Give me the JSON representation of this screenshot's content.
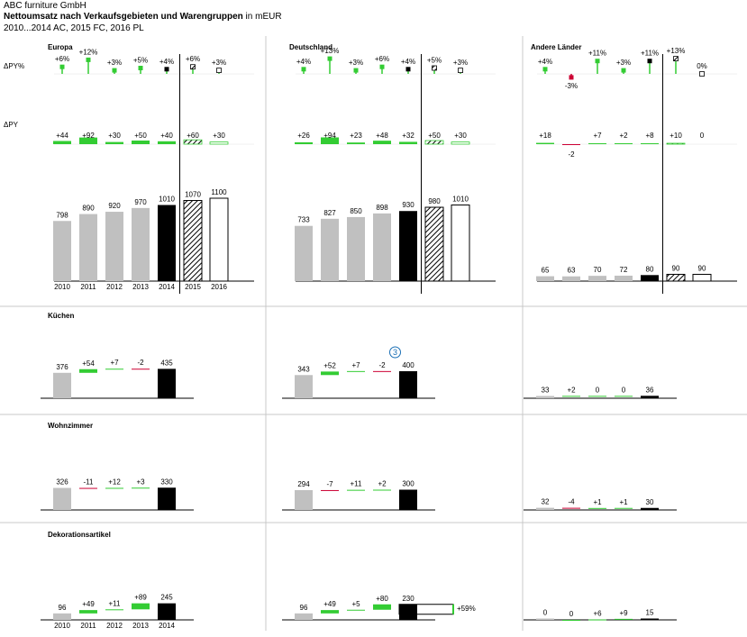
{
  "header": {
    "company": "ABC furniture GmbH",
    "title_bold": "Nettoumsatz nach Verkaufsgebieten und Warengruppen",
    "title_unit": " in mEUR",
    "subtitle": "2010...2014 AC, 2015 FC, 2016 PL"
  },
  "row_labels": {
    "dpy_pct": "ΔPY%",
    "dpy": "ΔPY"
  },
  "colors": {
    "ac": "#000000",
    "hist": "#c0c0c0",
    "positive": "#33cc33",
    "negative": "#cc0033",
    "axis": "#000000",
    "divider": "#c8c8c8",
    "note": "#1a6fb5"
  },
  "chart_data": [
    {
      "type": "bar",
      "name": "Europa",
      "categories": [
        "2010",
        "2011",
        "2012",
        "2013",
        "2014",
        "2015",
        "2016"
      ],
      "scenario": [
        "AC",
        "AC",
        "AC",
        "AC",
        "AC",
        "FC",
        "PL"
      ],
      "values": [
        798,
        890,
        920,
        970,
        1010,
        1070,
        1100
      ],
      "dpy": [
        "",
        "+92",
        "+30",
        "+50",
        "+40",
        "+60",
        "+30"
      ],
      "dpy_values": [
        44,
        92,
        30,
        50,
        40,
        60,
        30
      ],
      "dpy_first": "+44",
      "dpy_pct": [
        "+6%",
        "+12%",
        "+3%",
        "+5%",
        "+4%",
        "+6%",
        "+3%"
      ],
      "dpy_pct_values": [
        6,
        12,
        3,
        5,
        4,
        6,
        3
      ]
    },
    {
      "type": "bar",
      "name": "Deutschland",
      "categories": [
        "2010",
        "2011",
        "2012",
        "2013",
        "2014",
        "2015",
        "2016"
      ],
      "scenario": [
        "AC",
        "AC",
        "AC",
        "AC",
        "AC",
        "FC",
        "PL"
      ],
      "values": [
        733,
        827,
        850,
        898,
        930,
        980,
        1010
      ],
      "dpy": [
        "+26",
        "+94",
        "+23",
        "+48",
        "+32",
        "+50",
        "+30"
      ],
      "dpy_values": [
        26,
        94,
        23,
        48,
        32,
        50,
        30
      ],
      "dpy_pct": [
        "+4%",
        "+13%",
        "+3%",
        "+6%",
        "+4%",
        "+5%",
        "+3%"
      ],
      "dpy_pct_values": [
        4,
        13,
        3,
        6,
        4,
        5,
        3
      ]
    },
    {
      "type": "bar",
      "name": "Andere Länder",
      "categories": [
        "2010",
        "2011",
        "2012",
        "2013",
        "2014",
        "2015",
        "2016"
      ],
      "scenario": [
        "AC",
        "AC",
        "AC",
        "AC",
        "AC",
        "FC",
        "PL"
      ],
      "values": [
        65,
        63,
        70,
        72,
        80,
        90,
        90
      ],
      "dpy": [
        "+18",
        "-2",
        "+7",
        "+2",
        "+8",
        "+10",
        "0"
      ],
      "dpy_values": [
        18,
        -2,
        7,
        2,
        8,
        10,
        0
      ],
      "dpy_pct": [
        "+4%",
        "-3%",
        "+11%",
        "+3%",
        "+11%",
        "+13%",
        "0%"
      ],
      "dpy_pct_values": [
        4,
        -3,
        11,
        3,
        11,
        13,
        0
      ]
    },
    {
      "type": "waterfall",
      "name": "Küchen",
      "panels": [
        {
          "region": "Europa",
          "start": 376,
          "steps": [
            54,
            7,
            -2
          ],
          "end": 435,
          "labels": [
            "376",
            "+54",
            "+7",
            "-2",
            "435"
          ]
        },
        {
          "region": "Deutschland",
          "start": 343,
          "steps": [
            52,
            7,
            -2
          ],
          "end": 400,
          "labels": [
            "343",
            "+52",
            "+7",
            "-2",
            "400"
          ],
          "note": "3"
        },
        {
          "region": "Andere Länder",
          "start": 33,
          "steps": [
            2,
            0,
            0
          ],
          "end": 36,
          "labels": [
            "33",
            "+2",
            "0",
            "0",
            "36"
          ]
        }
      ]
    },
    {
      "type": "waterfall",
      "name": "Wohnzimmer",
      "panels": [
        {
          "region": "Europa",
          "start": 326,
          "steps": [
            -11,
            12,
            3
          ],
          "end": 330,
          "labels": [
            "326",
            "-11",
            "+12",
            "+3",
            "330"
          ]
        },
        {
          "region": "Deutschland",
          "start": 294,
          "steps": [
            -7,
            11,
            2
          ],
          "end": 300,
          "labels": [
            "294",
            "-7",
            "+11",
            "+2",
            "300"
          ]
        },
        {
          "region": "Andere Länder",
          "start": 32,
          "steps": [
            -4,
            1,
            1
          ],
          "end": 30,
          "labels": [
            "32",
            "-4",
            "+1",
            "+1",
            "30"
          ]
        }
      ]
    },
    {
      "type": "waterfall",
      "name": "Dekorationsartikel",
      "categories": [
        "2010",
        "2011",
        "2012",
        "2013",
        "2014"
      ],
      "panels": [
        {
          "region": "Europa",
          "start": 96,
          "steps": [
            49,
            11,
            89
          ],
          "end": 245,
          "labels": [
            "96",
            "+49",
            "+11",
            "+89",
            "245"
          ]
        },
        {
          "region": "Deutschland",
          "start": 96,
          "steps": [
            49,
            5,
            80
          ],
          "end": 230,
          "labels": [
            "96",
            "+49",
            "+5",
            "+80",
            "230"
          ],
          "compare": "+59%"
        },
        {
          "region": "Andere Länder",
          "start": 0,
          "steps": [
            0,
            6,
            9
          ],
          "end": 15,
          "labels": [
            "0",
            "0",
            "+6",
            "+9",
            "15"
          ]
        }
      ]
    }
  ]
}
